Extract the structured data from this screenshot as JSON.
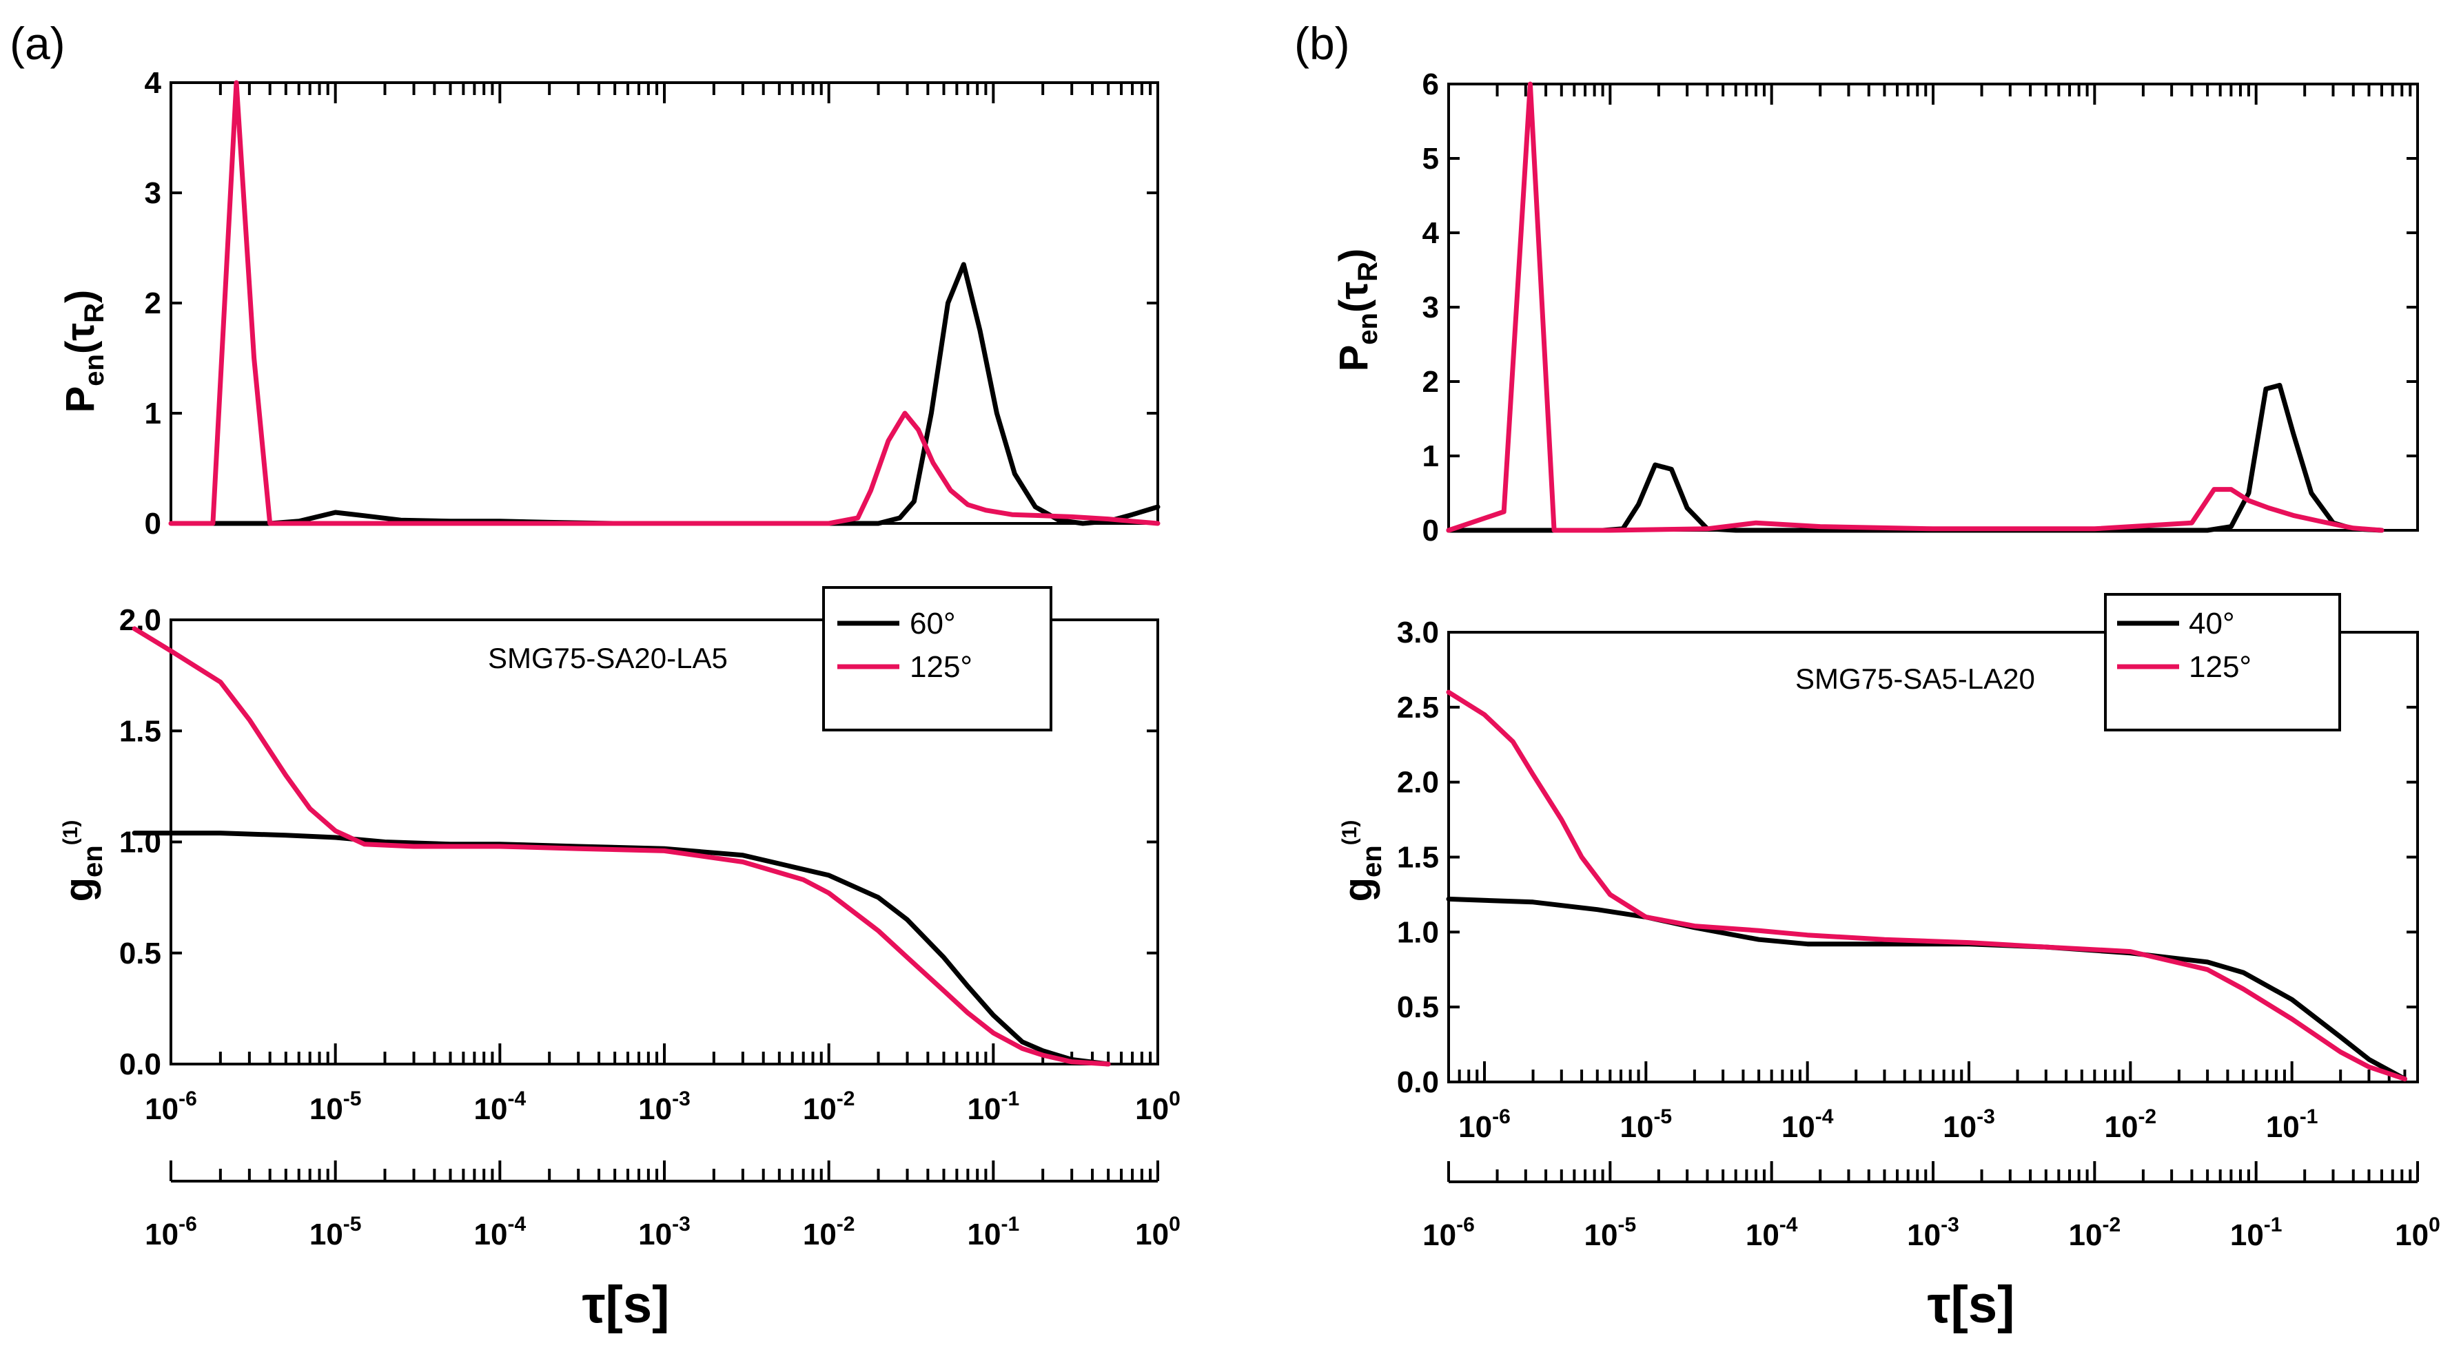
{
  "panels": [
    {
      "label": "(a)",
      "sample": "SMG75-SA20-LA5",
      "xlabel": "τ[s]",
      "top_axis_ticks": [
        "10-6",
        "10-5",
        "10-4",
        "10-3",
        "10-2",
        "10-1",
        "100"
      ],
      "chart_data": [
        {
          "type": "line",
          "role": "distribution",
          "ylabel": "Pen(τR)",
          "xscale": "log",
          "xlim": [
            1e-06,
            1
          ],
          "ylim": [
            0,
            4
          ],
          "yticks": [
            0,
            1,
            2,
            3,
            4
          ],
          "series": [
            {
              "name": "60°",
              "color": "#000000",
              "x": [
                1.2e-06,
                2.5e-06,
                4e-06,
                6e-06,
                1e-05,
                1.5e-05,
                2.5e-05,
                5e-05,
                0.0001,
                0.0002,
                0.0005,
                0.001,
                0.003,
                0.01,
                0.02,
                0.027,
                0.033,
                0.042,
                0.053,
                0.066,
                0.083,
                0.105,
                0.135,
                0.18,
                0.25,
                0.35,
                0.5,
                0.7,
                1
              ],
              "y": [
                0,
                0,
                0,
                0.02,
                0.1,
                0.07,
                0.03,
                0.02,
                0.02,
                0.01,
                0,
                0,
                0,
                0,
                0,
                0.05,
                0.2,
                1.0,
                2.0,
                2.35,
                1.75,
                1.0,
                0.45,
                0.15,
                0.03,
                0.0,
                0.02,
                0.08,
                0.15
              ]
            },
            {
              "name": "125°",
              "color": "#e8105a",
              "x": [
                1e-06,
                1.8e-06,
                2.5e-06,
                3.2e-06,
                4e-06,
                1e-05,
                0.0001,
                0.001,
                0.01,
                0.015,
                0.018,
                0.023,
                0.029,
                0.035,
                0.043,
                0.055,
                0.07,
                0.09,
                0.13,
                0.2,
                0.3,
                0.5,
                0.7,
                1
              ],
              "y": [
                0,
                0,
                4.0,
                1.5,
                0,
                0,
                0,
                0,
                0,
                0.05,
                0.3,
                0.75,
                1.0,
                0.85,
                0.55,
                0.3,
                0.17,
                0.12,
                0.08,
                0.07,
                0.06,
                0.04,
                0.02,
                0
              ]
            }
          ]
        },
        {
          "type": "line",
          "role": "correlation",
          "ylabel": "gen(1)",
          "xscale": "log",
          "xlim": [
            1e-06,
            1
          ],
          "xticks": [
            "10-6",
            "10-5",
            "10-4",
            "10-3",
            "10-2",
            "10-1",
            "100"
          ],
          "ylim": [
            0,
            2.0
          ],
          "yticks": [
            "0.0",
            "0.5",
            "1.0",
            "1.5",
            "2.0"
          ],
          "legend": "top-right",
          "series": [
            {
              "name": "60°",
              "color": "#000000",
              "x": [
                6e-07,
                2e-06,
                5e-06,
                1e-05,
                2e-05,
                5e-05,
                0.0001,
                0.0003,
                0.001,
                0.003,
                0.01,
                0.02,
                0.03,
                0.05,
                0.07,
                0.1,
                0.15,
                0.2,
                0.3,
                0.5
              ],
              "y": [
                1.04,
                1.04,
                1.03,
                1.02,
                1.0,
                0.99,
                0.99,
                0.98,
                0.97,
                0.94,
                0.85,
                0.75,
                0.65,
                0.48,
                0.35,
                0.22,
                0.1,
                0.06,
                0.02,
                0.0
              ]
            },
            {
              "name": "125°",
              "color": "#e8105a",
              "x": [
                6e-07,
                1e-06,
                2e-06,
                3e-06,
                5e-06,
                7e-06,
                1e-05,
                1.5e-05,
                3e-05,
                0.0001,
                0.0003,
                0.001,
                0.003,
                0.007,
                0.01,
                0.02,
                0.03,
                0.05,
                0.07,
                0.1,
                0.15,
                0.2,
                0.3,
                0.5
              ],
              "y": [
                1.96,
                1.86,
                1.72,
                1.55,
                1.3,
                1.15,
                1.05,
                0.99,
                0.98,
                0.98,
                0.97,
                0.96,
                0.91,
                0.83,
                0.77,
                0.6,
                0.48,
                0.33,
                0.23,
                0.14,
                0.07,
                0.04,
                0.01,
                0.0
              ]
            }
          ]
        }
      ]
    },
    {
      "label": "(b)",
      "sample": "SMG75-SA5-LA20",
      "xlabel": "τ[s]",
      "top_axis_ticks": [
        "10-6",
        "10-5",
        "10-4",
        "10-3",
        "10-2",
        "10-1",
        "100"
      ],
      "chart_data": [
        {
          "type": "line",
          "role": "distribution",
          "ylabel": "Pen(τR)",
          "xscale": "log",
          "xlim": [
            1e-06,
            1
          ],
          "ylim": [
            0,
            6
          ],
          "yticks": [
            0,
            1,
            2,
            3,
            4,
            5,
            6
          ],
          "series": [
            {
              "name": "40°",
              "color": "#000000",
              "x": [
                1e-06,
                5e-06,
                9e-06,
                1.2e-05,
                1.5e-05,
                1.9e-05,
                2.4e-05,
                3e-05,
                4e-05,
                6e-05,
                0.0001,
                0.001,
                0.01,
                0.05,
                0.07,
                0.09,
                0.115,
                0.14,
                0.17,
                0.22,
                0.3,
                0.4,
                0.6
              ],
              "y": [
                0,
                0,
                0,
                0.02,
                0.35,
                0.88,
                0.82,
                0.3,
                0.02,
                0,
                0,
                0,
                0,
                0,
                0.05,
                0.5,
                1.9,
                1.95,
                1.3,
                0.5,
                0.1,
                0.02,
                0
              ]
            },
            {
              "name": "125°",
              "color": "#e8105a",
              "x": [
                1e-06,
                2.2e-06,
                3.2e-06,
                4.5e-06,
                1e-05,
                4e-05,
                8e-05,
                0.0002,
                0.001,
                0.01,
                0.04,
                0.055,
                0.07,
                0.09,
                0.12,
                0.17,
                0.25,
                0.4,
                0.6
              ],
              "y": [
                0,
                0.25,
                6.0,
                0,
                0,
                0.02,
                0.1,
                0.05,
                0.02,
                0.02,
                0.1,
                0.55,
                0.55,
                0.4,
                0.3,
                0.2,
                0.12,
                0.03,
                0
              ]
            }
          ]
        },
        {
          "type": "line",
          "role": "correlation",
          "ylabel": "gen(1)",
          "xscale": "log",
          "xlim": [
            6e-07,
            0.6
          ],
          "xticks": [
            "10-6",
            "10-5",
            "10-4",
            "10-3",
            "10-2",
            "10-1"
          ],
          "ylim": [
            0,
            3.0
          ],
          "yticks": [
            "0.0",
            "0.5",
            "1.0",
            "1.5",
            "2.0",
            "2.5",
            "3.0"
          ],
          "legend": "top-right",
          "series": [
            {
              "name": "40°",
              "color": "#000000",
              "x": [
                6e-07,
                2e-06,
                5e-06,
                1e-05,
                2e-05,
                5e-05,
                0.0001,
                0.0003,
                0.001,
                0.003,
                0.01,
                0.03,
                0.05,
                0.1,
                0.2,
                0.3,
                0.5
              ],
              "y": [
                1.22,
                1.2,
                1.15,
                1.1,
                1.03,
                0.95,
                0.92,
                0.92,
                0.92,
                0.9,
                0.86,
                0.8,
                0.73,
                0.55,
                0.3,
                0.15,
                0.02
              ]
            },
            {
              "name": "125°",
              "color": "#e8105a",
              "x": [
                6e-07,
                1e-06,
                1.5e-06,
                2e-06,
                3e-06,
                4e-06,
                6e-06,
                1e-05,
                2e-05,
                5e-05,
                0.0001,
                0.0003,
                0.001,
                0.003,
                0.01,
                0.03,
                0.05,
                0.1,
                0.2,
                0.3,
                0.5
              ],
              "y": [
                2.6,
                2.45,
                2.27,
                2.05,
                1.75,
                1.5,
                1.25,
                1.1,
                1.04,
                1.01,
                0.98,
                0.95,
                0.93,
                0.9,
                0.87,
                0.75,
                0.62,
                0.42,
                0.2,
                0.1,
                0.02
              ]
            }
          ]
        }
      ]
    }
  ]
}
